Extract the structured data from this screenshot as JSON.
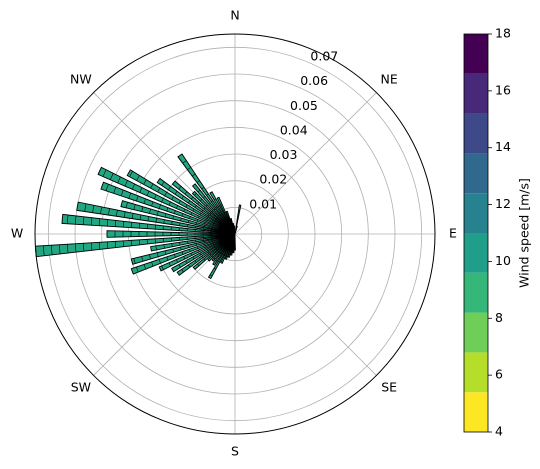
{
  "chart_data": {
    "type": "windrose",
    "radial_ticks": [
      "0.01",
      "0.02",
      "0.03",
      "0.04",
      "0.05",
      "0.06",
      "0.07"
    ],
    "radial_tick_values": [
      0.01,
      0.02,
      0.03,
      0.04,
      0.05,
      0.06,
      0.07
    ],
    "rmax": 0.075,
    "directions": [
      "N",
      "NE",
      "E",
      "SE",
      "S",
      "SW",
      "W",
      "NW"
    ],
    "colorbar": {
      "label": "Wind speed [m/s]",
      "ticks": [
        "4",
        "6",
        "8",
        "10",
        "12",
        "14",
        "16",
        "18"
      ],
      "tick_values": [
        4,
        6,
        8,
        10,
        12,
        14,
        16,
        18
      ],
      "levels": [
        4,
        5,
        6,
        7,
        8,
        9,
        10,
        11,
        12,
        13,
        14,
        15,
        16,
        17,
        18
      ],
      "colors": [
        "#fde725",
        "#b5de2b",
        "#6ece58",
        "#35b779",
        "#1f9e89",
        "#26828e",
        "#31688e",
        "#3e4989",
        "#482878",
        "#440154"
      ]
    },
    "bar_color": "#22a784",
    "bar_edge_color": "#000000",
    "bar_width_deg": 3,
    "bars": [
      {
        "dir": 180,
        "value": 0.006
      },
      {
        "dir": 185,
        "value": 0.007
      },
      {
        "dir": 190,
        "value": 0.008
      },
      {
        "dir": 195,
        "value": 0.009
      },
      {
        "dir": 200,
        "value": 0.01
      },
      {
        "dir": 205,
        "value": 0.012
      },
      {
        "dir": 210,
        "value": 0.019
      },
      {
        "dir": 215,
        "value": 0.014
      },
      {
        "dir": 220,
        "value": 0.013
      },
      {
        "dir": 225,
        "value": 0.014
      },
      {
        "dir": 230,
        "value": 0.02
      },
      {
        "dir": 235,
        "value": 0.026
      },
      {
        "dir": 240,
        "value": 0.027
      },
      {
        "dir": 245,
        "value": 0.031
      },
      {
        "dir": 250,
        "value": 0.041
      },
      {
        "dir": 255,
        "value": 0.04
      },
      {
        "dir": 260,
        "value": 0.032
      },
      {
        "dir": 265,
        "value": 0.075
      },
      {
        "dir": 270,
        "value": 0.048
      },
      {
        "dir": 275,
        "value": 0.065
      },
      {
        "dir": 280,
        "value": 0.06
      },
      {
        "dir": 285,
        "value": 0.044
      },
      {
        "dir": 290,
        "value": 0.053
      },
      {
        "dir": 295,
        "value": 0.056
      },
      {
        "dir": 300,
        "value": 0.046
      },
      {
        "dir": 305,
        "value": 0.035
      },
      {
        "dir": 310,
        "value": 0.03
      },
      {
        "dir": 315,
        "value": 0.022
      },
      {
        "dir": 320,
        "value": 0.024
      },
      {
        "dir": 325,
        "value": 0.036
      },
      {
        "dir": 330,
        "value": 0.018
      },
      {
        "dir": 335,
        "value": 0.015
      },
      {
        "dir": 340,
        "value": 0.009
      },
      {
        "dir": 345,
        "value": 0.006
      },
      {
        "dir": 350,
        "value": 0.004
      },
      {
        "dir": 355,
        "value": 0.003
      },
      {
        "dir": 10,
        "value": 0.011
      },
      {
        "dir": 15,
        "value": 0.003
      }
    ]
  }
}
